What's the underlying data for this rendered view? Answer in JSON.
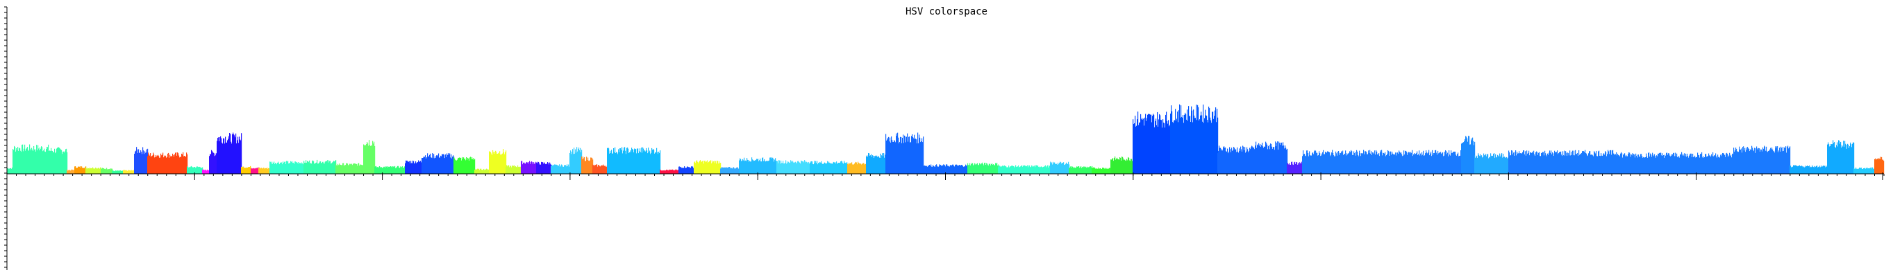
{
  "chart_data": {
    "type": "area",
    "title": "HSV colorspace",
    "xlabel": "",
    "ylabel": "",
    "grid": false,
    "legend": "none",
    "x_ticks_major_count": 10,
    "segments": [
      {
        "from": 0.0,
        "to": 0.003,
        "color": "#33ffaa",
        "level": 0.15
      },
      {
        "from": 0.003,
        "to": 0.022,
        "color": "#33ffaa",
        "level": 0.68
      },
      {
        "from": 0.022,
        "to": 0.032,
        "color": "#33ffaa",
        "level": 0.62
      },
      {
        "from": 0.032,
        "to": 0.036,
        "color": "#ffaa33",
        "level": 0.1
      },
      {
        "from": 0.036,
        "to": 0.042,
        "color": "#ff9900",
        "level": 0.18
      },
      {
        "from": 0.042,
        "to": 0.05,
        "color": "#ccff33",
        "level": 0.16
      },
      {
        "from": 0.05,
        "to": 0.056,
        "color": "#66ff66",
        "level": 0.14
      },
      {
        "from": 0.056,
        "to": 0.062,
        "color": "#33ff99",
        "level": 0.08
      },
      {
        "from": 0.062,
        "to": 0.068,
        "color": "#ffee33",
        "level": 0.09
      },
      {
        "from": 0.068,
        "to": 0.075,
        "color": "#1f4fff",
        "level": 0.62
      },
      {
        "from": 0.075,
        "to": 0.096,
        "color": "#ff4411",
        "level": 0.5
      },
      {
        "from": 0.096,
        "to": 0.104,
        "color": "#33ffbb",
        "level": 0.18
      },
      {
        "from": 0.104,
        "to": 0.108,
        "color": "#ff11ff",
        "level": 0.1
      },
      {
        "from": 0.108,
        "to": 0.112,
        "color": "#3311ff",
        "level": 0.55
      },
      {
        "from": 0.112,
        "to": 0.125,
        "color": "#2211ff",
        "level": 0.95
      },
      {
        "from": 0.125,
        "to": 0.13,
        "color": "#ffcc00",
        "level": 0.18
      },
      {
        "from": 0.13,
        "to": 0.134,
        "color": "#ff1188",
        "level": 0.16
      },
      {
        "from": 0.134,
        "to": 0.14,
        "color": "#ffcc22",
        "level": 0.15
      },
      {
        "from": 0.14,
        "to": 0.158,
        "color": "#33ffcc",
        "level": 0.3
      },
      {
        "from": 0.158,
        "to": 0.175,
        "color": "#33ffaa",
        "level": 0.32
      },
      {
        "from": 0.175,
        "to": 0.19,
        "color": "#66ff66",
        "level": 0.25
      },
      {
        "from": 0.19,
        "to": 0.196,
        "color": "#66ff66",
        "level": 0.85
      },
      {
        "from": 0.196,
        "to": 0.212,
        "color": "#33ff77",
        "level": 0.18
      },
      {
        "from": 0.212,
        "to": 0.221,
        "color": "#1133ff",
        "level": 0.32
      },
      {
        "from": 0.221,
        "to": 0.238,
        "color": "#1155ff",
        "level": 0.48
      },
      {
        "from": 0.238,
        "to": 0.249,
        "color": "#33ff33",
        "level": 0.4
      },
      {
        "from": 0.249,
        "to": 0.257,
        "color": "#ccff33",
        "level": 0.12
      },
      {
        "from": 0.257,
        "to": 0.266,
        "color": "#eeff22",
        "level": 0.58
      },
      {
        "from": 0.266,
        "to": 0.274,
        "color": "#ccff33",
        "level": 0.2
      },
      {
        "from": 0.274,
        "to": 0.282,
        "color": "#7711ff",
        "level": 0.3
      },
      {
        "from": 0.282,
        "to": 0.29,
        "color": "#3311ff",
        "level": 0.28
      },
      {
        "from": 0.29,
        "to": 0.3,
        "color": "#33ccff",
        "level": 0.22
      },
      {
        "from": 0.3,
        "to": 0.306,
        "color": "#33ccff",
        "level": 0.62
      },
      {
        "from": 0.306,
        "to": 0.312,
        "color": "#ff8822",
        "level": 0.4
      },
      {
        "from": 0.312,
        "to": 0.32,
        "color": "#ff5522",
        "level": 0.22
      },
      {
        "from": 0.32,
        "to": 0.348,
        "color": "#11bbff",
        "level": 0.62
      },
      {
        "from": 0.348,
        "to": 0.358,
        "color": "#ff1144",
        "level": 0.1
      },
      {
        "from": 0.358,
        "to": 0.366,
        "color": "#1144ff",
        "level": 0.18
      },
      {
        "from": 0.366,
        "to": 0.38,
        "color": "#eeff22",
        "level": 0.32
      },
      {
        "from": 0.38,
        "to": 0.39,
        "color": "#33aaff",
        "level": 0.16
      },
      {
        "from": 0.39,
        "to": 0.41,
        "color": "#22bbff",
        "level": 0.38
      },
      {
        "from": 0.41,
        "to": 0.428,
        "color": "#44ddff",
        "level": 0.32
      },
      {
        "from": 0.428,
        "to": 0.448,
        "color": "#22ccff",
        "level": 0.3
      },
      {
        "from": 0.448,
        "to": 0.458,
        "color": "#ffbb22",
        "level": 0.28
      },
      {
        "from": 0.458,
        "to": 0.468,
        "color": "#11aaff",
        "level": 0.48
      },
      {
        "from": 0.468,
        "to": 0.488,
        "color": "#1166ff",
        "level": 0.95
      },
      {
        "from": 0.488,
        "to": 0.512,
        "color": "#1166ff",
        "level": 0.22
      },
      {
        "from": 0.512,
        "to": 0.528,
        "color": "#33ff77",
        "level": 0.26
      },
      {
        "from": 0.528,
        "to": 0.556,
        "color": "#33ffcc",
        "level": 0.2
      },
      {
        "from": 0.556,
        "to": 0.566,
        "color": "#33ccff",
        "level": 0.28
      },
      {
        "from": 0.566,
        "to": 0.578,
        "color": "#33ff66",
        "level": 0.18
      },
      {
        "from": 0.578,
        "to": 0.588,
        "color": "#33ff33",
        "level": 0.15
      },
      {
        "from": 0.588,
        "to": 0.6,
        "color": "#33ee33",
        "level": 0.4
      },
      {
        "from": 0.6,
        "to": 0.62,
        "color": "#0044ff",
        "level": 1.45
      },
      {
        "from": 0.62,
        "to": 0.645,
        "color": "#0055ff",
        "level": 1.6
      },
      {
        "from": 0.645,
        "to": 0.665,
        "color": "#1166ff",
        "level": 0.65
      },
      {
        "from": 0.665,
        "to": 0.682,
        "color": "#1166ff",
        "level": 0.75
      },
      {
        "from": 0.682,
        "to": 0.69,
        "color": "#5522ff",
        "level": 0.28
      },
      {
        "from": 0.69,
        "to": 0.775,
        "color": "#1a7aff",
        "level": 0.55
      },
      {
        "from": 0.775,
        "to": 0.782,
        "color": "#1a8aff",
        "level": 0.88
      },
      {
        "from": 0.782,
        "to": 0.8,
        "color": "#22aaff",
        "level": 0.48
      },
      {
        "from": 0.8,
        "to": 0.86,
        "color": "#1a7aff",
        "level": 0.55
      },
      {
        "from": 0.86,
        "to": 0.92,
        "color": "#1a7aff",
        "level": 0.5
      },
      {
        "from": 0.92,
        "to": 0.95,
        "color": "#1a7aff",
        "level": 0.65
      },
      {
        "from": 0.95,
        "to": 0.97,
        "color": "#11aaff",
        "level": 0.2
      },
      {
        "from": 0.97,
        "to": 0.984,
        "color": "#11aaff",
        "level": 0.78
      },
      {
        "from": 0.984,
        "to": 0.995,
        "color": "#22ccff",
        "level": 0.15
      },
      {
        "from": 0.995,
        "to": 1.0,
        "color": "#ff6611",
        "level": 0.4
      }
    ]
  }
}
